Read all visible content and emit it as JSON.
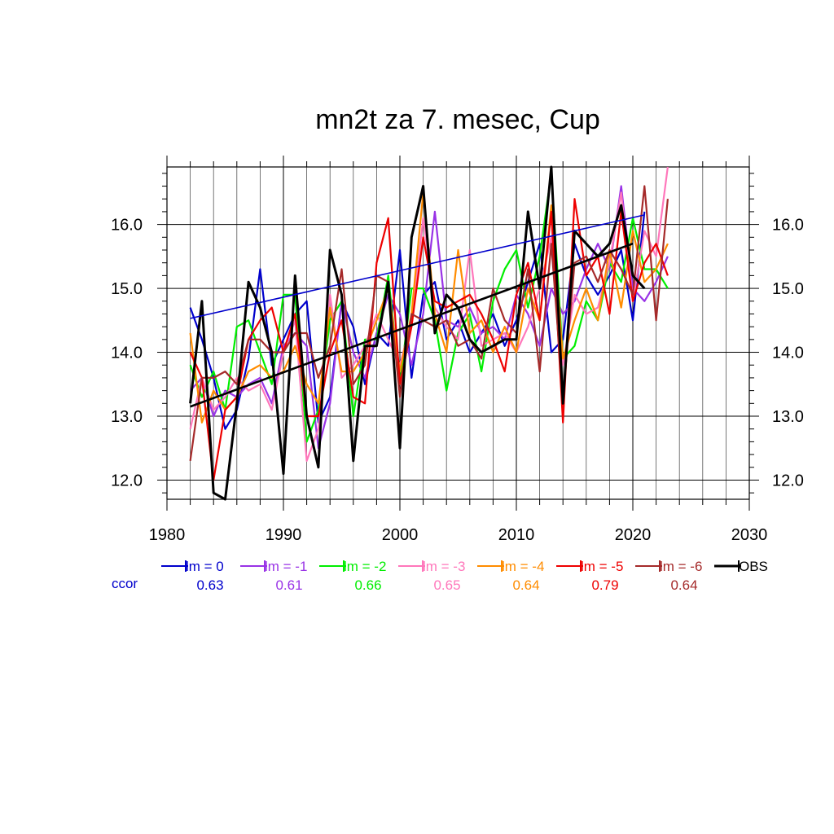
{
  "chart_data": {
    "type": "line",
    "title": "mn2t za 7. mesec, Cup",
    "xlabel": "",
    "ylabel": "",
    "xlim": [
      1980,
      2030
    ],
    "ylim": [
      11.7,
      16.9
    ],
    "x_ticks": [
      "1980",
      "1990",
      "2000",
      "2010",
      "2020",
      "2030"
    ],
    "y_ticks": [
      "12.0",
      "13.0",
      "14.0",
      "15.0",
      "16.0"
    ],
    "x_tick_values": [
      1980,
      1990,
      2000,
      2010,
      2020,
      2030
    ],
    "y_tick_values": [
      12,
      13,
      14,
      15,
      16
    ],
    "grid": true,
    "ccor_label": "ccor",
    "series": [
      {
        "name": "lm = 0",
        "color": "#0000cc",
        "ccor": "0.63",
        "start": 1982,
        "values": [
          14.7,
          14.2,
          13.6,
          12.8,
          13.1,
          13.9,
          15.3,
          13.8,
          14.2,
          14.6,
          14.8,
          12.9,
          13.3,
          14.8,
          14.4,
          13.5,
          14.3,
          14.1,
          15.6,
          13.6,
          14.9,
          15.1,
          14.2,
          14.5,
          14.0,
          14.3,
          14.6,
          14.1,
          14.5,
          15.1,
          15.7,
          14.0,
          14.2,
          15.7,
          15.2,
          14.9,
          15.2,
          15.6,
          14.5,
          16.2
        ]
      },
      {
        "name": "lm = -1",
        "color": "#9933e6",
        "ccor": "0.61",
        "start": 1982,
        "values": [
          13.4,
          13.6,
          13.0,
          13.4,
          13.3,
          13.5,
          13.6,
          13.2,
          14.1,
          14.3,
          14.1,
          12.5,
          13.2,
          14.8,
          14.0,
          13.6,
          14.3,
          14.9,
          14.6,
          13.8,
          14.6,
          16.2,
          14.5,
          14.4,
          14.7,
          14.3,
          14.4,
          14.2,
          14.9,
          14.6,
          14.1,
          15.0,
          14.6,
          14.8,
          15.3,
          15.7,
          15.3,
          16.6,
          15.0,
          14.8,
          15.1,
          15.5
        ]
      },
      {
        "name": "lm = -2",
        "color": "#00ee00",
        "ccor": "0.66",
        "start": 1982,
        "values": [
          13.8,
          13.3,
          13.7,
          13.1,
          14.4,
          14.5,
          14.0,
          13.5,
          14.9,
          14.9,
          12.6,
          13.1,
          14.5,
          14.8,
          13.0,
          14.2,
          14.2,
          15.2,
          13.5,
          15.0,
          15.0,
          14.5,
          13.4,
          14.3,
          14.6,
          13.7,
          14.8,
          15.3,
          15.6,
          14.7,
          15.5,
          16.8,
          13.9,
          14.1,
          14.8,
          14.5,
          15.4,
          15.1,
          16.1,
          15.3,
          15.3,
          15.0
        ]
      },
      {
        "name": "lm = -3",
        "color": "#ff77bb",
        "ccor": "0.65",
        "start": 1982,
        "values": [
          12.8,
          13.6,
          13.1,
          13.3,
          13.6,
          13.4,
          13.5,
          13.1,
          14.0,
          14.5,
          12.3,
          12.8,
          14.9,
          13.6,
          13.8,
          14.1,
          14.6,
          14.2,
          13.8,
          14.5,
          16.1,
          14.7,
          14.4,
          14.2,
          15.6,
          14.1,
          14.2,
          14.3,
          14.0,
          14.4,
          15.0,
          15.8,
          13.8,
          14.9,
          14.6,
          14.7,
          15.4,
          16.5,
          14.8,
          15.9,
          15.5,
          16.9
        ]
      },
      {
        "name": "lm = -4",
        "color": "#ff8c00",
        "ccor": "0.64",
        "start": 1982,
        "values": [
          14.3,
          12.9,
          13.4,
          13.1,
          13.3,
          13.7,
          13.8,
          13.6,
          13.7,
          14.1,
          13.5,
          13.2,
          14.7,
          13.7,
          13.7,
          14.0,
          14.5,
          15.0,
          13.7,
          14.6,
          16.5,
          14.6,
          14.0,
          15.6,
          14.3,
          14.5,
          14.0,
          14.4,
          14.0,
          15.0,
          14.5,
          16.3,
          13.9,
          14.5,
          15.0,
          14.5,
          15.6,
          14.7,
          15.9,
          15.1,
          15.3,
          15.7
        ]
      },
      {
        "name": "lm = -5",
        "color": "#ee0000",
        "ccor": "0.79",
        "start": 1982,
        "values": [
          14.0,
          13.6,
          12.0,
          13.1,
          13.3,
          14.2,
          14.5,
          14.7,
          14.0,
          14.6,
          13.0,
          13.0,
          14.0,
          14.5,
          13.3,
          13.2,
          15.4,
          16.1,
          13.5,
          14.4,
          15.8,
          14.8,
          14.7,
          14.8,
          14.9,
          14.6,
          14.2,
          13.7,
          14.9,
          15.4,
          14.5,
          16.2,
          12.9,
          16.4,
          15.2,
          15.5,
          14.6,
          16.2,
          14.8,
          15.4,
          15.7,
          15.2
        ]
      },
      {
        "name": "lm = -6",
        "color": "#a52a2a",
        "ccor": "0.64",
        "start": 1982,
        "values": [
          12.3,
          13.6,
          13.6,
          13.7,
          13.5,
          14.2,
          14.2,
          14.0,
          14.0,
          14.3,
          14.3,
          13.6,
          14.1,
          15.3,
          13.5,
          13.8,
          15.2,
          15.1,
          13.3,
          14.6,
          14.5,
          14.4,
          14.5,
          14.1,
          14.2,
          13.9,
          15.0,
          14.5,
          14.3,
          15.3,
          13.7,
          15.7,
          13.3,
          15.4,
          15.5,
          15.1,
          15.6,
          15.3,
          14.9,
          16.6,
          14.5,
          16.4
        ]
      },
      {
        "name": "OBS",
        "color": "#000000",
        "ccor": "",
        "start": 1982,
        "values": [
          13.2,
          14.8,
          11.8,
          11.7,
          13.2,
          15.1,
          14.7,
          14.0,
          12.1,
          15.2,
          13.0,
          12.2,
          15.6,
          14.9,
          12.3,
          14.1,
          14.1,
          15.1,
          12.5,
          15.8,
          16.6,
          14.3,
          14.9,
          14.7,
          14.2,
          14.0,
          14.1,
          14.2,
          14.2,
          16.2,
          15.0,
          16.9,
          13.2,
          15.9,
          15.7,
          15.5,
          15.7,
          16.3,
          15.2,
          15.0
        ]
      }
    ],
    "trend_lines": [
      {
        "series": "lm = 0",
        "color": "#0000cc",
        "x": [
          1982,
          2021
        ],
        "y": [
          14.53,
          16.15
        ]
      },
      {
        "series": "OBS",
        "color": "#000000",
        "x": [
          1982,
          2020
        ],
        "y": [
          13.15,
          15.7
        ]
      }
    ]
  }
}
